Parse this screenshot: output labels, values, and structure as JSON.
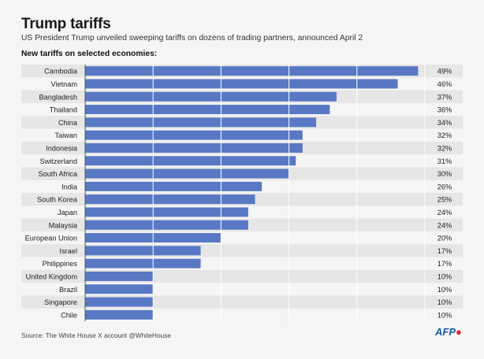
{
  "title": "Trump tariffs",
  "subtitle": "US President Trump unveiled sweeping tariffs on dozens of trading partners, announced April 2",
  "section_label": "New tariffs on selected economies:",
  "source": "Source: The White House  X account @WhiteHouse",
  "logo": "AFP",
  "colors": {
    "bar": "#5878c4",
    "grid": "#ffffff",
    "stripe": "#e6e6e6",
    "background": "#f5f5f5"
  },
  "chart_data": {
    "type": "bar",
    "orientation": "horizontal",
    "categories": [
      "Cambodia",
      "Vietnam",
      "Bangladesh",
      "Thailand",
      "China",
      "Taiwan",
      "Indonesia",
      "Switzerland",
      "South Africa",
      "India",
      "South Korea",
      "Japan",
      "Malaysia",
      "European Union",
      "Israel",
      "Philippines",
      "United Kingdom",
      "Brazil",
      "Singapore",
      "Chile"
    ],
    "values": [
      49,
      46,
      37,
      36,
      34,
      32,
      32,
      31,
      30,
      26,
      25,
      24,
      24,
      20,
      17,
      17,
      10,
      10,
      10,
      10
    ],
    "value_labels": [
      "49%",
      "46%",
      "37%",
      "36%",
      "34%",
      "32%",
      "32%",
      "31%",
      "30%",
      "26%",
      "25%",
      "24%",
      "24%",
      "20%",
      "17%",
      "17%",
      "10%",
      "10%",
      "10%",
      "10%"
    ],
    "unit": "%",
    "xlim": [
      0,
      50
    ],
    "gridlines": [
      10,
      20,
      30,
      40
    ],
    "grid": true,
    "legend": "none"
  }
}
